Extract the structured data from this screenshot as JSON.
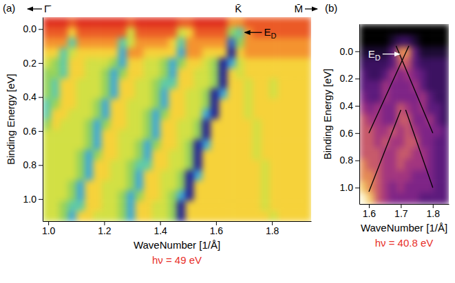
{
  "chart_data": [
    {
      "type": "heatmap",
      "panel_label": "(a)",
      "x_label": "WaveNumber [1/Å]",
      "y_label": "Binding Energy [eV]",
      "note": "hν = 49 eV",
      "xlim": [
        0.98,
        1.94
      ],
      "ylim": [
        -0.07,
        1.13
      ],
      "xticks": [
        {
          "value": 1,
          "label": "1.0"
        },
        1.2,
        1.4,
        1.6,
        1.8
      ],
      "yticks": [
        {
          "value": 0,
          "label": "0.0"
        },
        0.2,
        0.4,
        0.6,
        0.8,
        {
          "value": 1,
          "label": "1.0"
        }
      ],
      "x_bins": [
        0.98,
        1.01,
        1.04,
        1.07,
        1.1,
        1.13,
        1.16,
        1.19,
        1.22,
        1.25,
        1.28,
        1.31,
        1.34,
        1.37,
        1.4,
        1.43,
        1.46,
        1.49,
        1.52,
        1.55,
        1.58,
        1.61,
        1.64,
        1.67,
        1.7,
        1.73,
        1.76,
        1.79,
        1.82,
        1.85,
        1.88,
        1.91,
        1.94
      ],
      "y_bins": [
        -0.07,
        -0.01,
        0.05,
        0.11,
        0.17,
        0.23,
        0.29,
        0.35,
        0.41,
        0.47,
        0.53,
        0.59,
        0.65,
        0.71,
        0.77,
        0.83,
        0.89,
        0.95,
        1.01,
        1.07,
        1.13
      ],
      "zlim": [
        0,
        9
      ],
      "z": [
        [
          0,
          0,
          0,
          1,
          0,
          0,
          0,
          0,
          0,
          0,
          1,
          0,
          0,
          0,
          0,
          0,
          1,
          1,
          0,
          0,
          0,
          0,
          2,
          2,
          1,
          1,
          1,
          1,
          1,
          1,
          1,
          1
        ],
        [
          1,
          1,
          1,
          3,
          1,
          1,
          1,
          1,
          1,
          1,
          4,
          1,
          1,
          1,
          1,
          1,
          4,
          3,
          1,
          1,
          1,
          1,
          5,
          6,
          2,
          1,
          1,
          1,
          1,
          1,
          1,
          1
        ],
        [
          2,
          2,
          2,
          6,
          2,
          2,
          2,
          2,
          2,
          6,
          4,
          2,
          2,
          2,
          2,
          3,
          6,
          2,
          2,
          2,
          2,
          2,
          8,
          5,
          2,
          2,
          2,
          2,
          2,
          2,
          2,
          2
        ],
        [
          3,
          3,
          6,
          4,
          3,
          3,
          3,
          3,
          3,
          7,
          2,
          2,
          3,
          3,
          3,
          3,
          7,
          2,
          2,
          3,
          3,
          3,
          9,
          3,
          2,
          2,
          2,
          2,
          2,
          2,
          2,
          2
        ],
        [
          4,
          5,
          6,
          3,
          3,
          4,
          4,
          4,
          5,
          7,
          3,
          3,
          4,
          4,
          5,
          7,
          5,
          3,
          3,
          4,
          5,
          9,
          7,
          4,
          3,
          3,
          3,
          3,
          3,
          3,
          3,
          3
        ],
        [
          5,
          5,
          6,
          3,
          3,
          4,
          4,
          5,
          7,
          5,
          3,
          3,
          4,
          4,
          5,
          7,
          3,
          3,
          4,
          4,
          5,
          9,
          3,
          4,
          3,
          3,
          3,
          3,
          3,
          3,
          3,
          3
        ],
        [
          5,
          6,
          3,
          3,
          4,
          4,
          4,
          5,
          7,
          3,
          3,
          4,
          4,
          5,
          6,
          6,
          3,
          3,
          4,
          4,
          5,
          9,
          3,
          3,
          4,
          3,
          3,
          4,
          3,
          3,
          3,
          3
        ],
        [
          5,
          6,
          3,
          3,
          4,
          4,
          4,
          5,
          7,
          3,
          3,
          4,
          4,
          5,
          7,
          3,
          3,
          4,
          4,
          5,
          9,
          7,
          3,
          3,
          4,
          3,
          3,
          4,
          3,
          3,
          3,
          3
        ],
        [
          6,
          5,
          3,
          3,
          4,
          4,
          5,
          7,
          3,
          3,
          4,
          4,
          4,
          5,
          7,
          3,
          3,
          4,
          4,
          5,
          9,
          3,
          3,
          3,
          4,
          3,
          3,
          3,
          3,
          3,
          3,
          3
        ],
        [
          6,
          3,
          3,
          4,
          4,
          4,
          5,
          7,
          3,
          3,
          4,
          4,
          5,
          7,
          5,
          3,
          3,
          4,
          4,
          7,
          9,
          3,
          3,
          3,
          4,
          3,
          3,
          3,
          3,
          3,
          3,
          3
        ],
        [
          5,
          3,
          4,
          4,
          4,
          5,
          7,
          5,
          3,
          3,
          4,
          4,
          5,
          7,
          3,
          3,
          4,
          4,
          5,
          9,
          3,
          3,
          3,
          3,
          3,
          4,
          3,
          3,
          3,
          3,
          3,
          3
        ],
        [
          4,
          4,
          4,
          4,
          4,
          5,
          7,
          3,
          3,
          4,
          4,
          4,
          5,
          7,
          3,
          3,
          4,
          4,
          5,
          9,
          3,
          3,
          3,
          3,
          3,
          4,
          3,
          3,
          3,
          3,
          3,
          3
        ],
        [
          4,
          4,
          4,
          4,
          4,
          5,
          7,
          3,
          3,
          4,
          4,
          5,
          7,
          5,
          3,
          3,
          4,
          5,
          9,
          7,
          3,
          3,
          3,
          3,
          3,
          4,
          3,
          3,
          3,
          3,
          3,
          3
        ],
        [
          4,
          4,
          4,
          4,
          5,
          7,
          5,
          3,
          3,
          4,
          4,
          5,
          7,
          3,
          3,
          4,
          4,
          5,
          9,
          3,
          3,
          3,
          3,
          3,
          3,
          4,
          3,
          3,
          3,
          3,
          3,
          3
        ],
        [
          4,
          4,
          4,
          4,
          5,
          7,
          3,
          3,
          4,
          4,
          5,
          6,
          6,
          3,
          3,
          4,
          4,
          5,
          9,
          3,
          3,
          3,
          3,
          3,
          3,
          3,
          4,
          3,
          3,
          3,
          3,
          3
        ],
        [
          4,
          4,
          4,
          4,
          5,
          7,
          3,
          3,
          4,
          4,
          5,
          7,
          3,
          3,
          4,
          4,
          5,
          9,
          7,
          3,
          3,
          3,
          3,
          3,
          3,
          3,
          4,
          3,
          3,
          3,
          3,
          3
        ],
        [
          4,
          4,
          4,
          5,
          7,
          3,
          3,
          4,
          4,
          4,
          5,
          7,
          3,
          3,
          4,
          4,
          5,
          9,
          3,
          3,
          3,
          3,
          3,
          3,
          3,
          3,
          4,
          3,
          3,
          3,
          3,
          3
        ],
        [
          4,
          4,
          4,
          5,
          7,
          3,
          3,
          4,
          4,
          5,
          7,
          5,
          3,
          3,
          4,
          5,
          7,
          9,
          3,
          3,
          3,
          3,
          3,
          3,
          3,
          3,
          4,
          3,
          3,
          3,
          3,
          3
        ],
        [
          4,
          4,
          5,
          6,
          6,
          3,
          3,
          4,
          4,
          5,
          7,
          3,
          3,
          4,
          4,
          5,
          9,
          3,
          3,
          3,
          3,
          3,
          3,
          3,
          3,
          3,
          4,
          3,
          3,
          3,
          3,
          3
        ],
        [
          4,
          4,
          5,
          7,
          3,
          3,
          4,
          4,
          4,
          5,
          7,
          3,
          3,
          4,
          4,
          5,
          9,
          3,
          3,
          3,
          3,
          3,
          3,
          3,
          3,
          3,
          3,
          4,
          3,
          3,
          3,
          3
        ]
      ],
      "symmetry_points": [
        {
          "label": "Γ̄"
        },
        {
          "label": "K̄",
          "x": 1.68
        },
        {
          "label": "M̄"
        }
      ],
      "annotations": [
        {
          "text": "E",
          "subscript": "D",
          "x": 1.695,
          "y": 0.02
        }
      ]
    },
    {
      "type": "heatmap",
      "panel_label": "(b)",
      "x_label": "WaveNumber [1/Å]",
      "y_label": "Binding Energy [eV]",
      "note": "hν = 40.8 eV",
      "xlim": [
        1.57,
        1.85
      ],
      "ylim": [
        -0.2,
        1.12
      ],
      "xticks": [
        1.6,
        1.7,
        1.8
      ],
      "yticks": [
        {
          "value": 0,
          "label": "0.0"
        },
        0.2,
        0.4,
        0.6,
        0.8,
        {
          "value": 1,
          "label": "1.0"
        }
      ],
      "x_bins": [
        1.57,
        1.593,
        1.617,
        1.64,
        1.663,
        1.687,
        1.71,
        1.733,
        1.757,
        1.78,
        1.803,
        1.827,
        1.85
      ],
      "y_bins": [
        -0.2,
        -0.118,
        -0.035,
        0.048,
        0.13,
        0.213,
        0.295,
        0.378,
        0.46,
        0.543,
        0.625,
        0.708,
        0.79,
        0.873,
        0.955,
        1.038,
        1.12
      ],
      "zlim": [
        0,
        9
      ],
      "z": [
        [
          0,
          0,
          0,
          0,
          0,
          0,
          0,
          0,
          0,
          0,
          0,
          0
        ],
        [
          0,
          0,
          0,
          0,
          1,
          2,
          2,
          1,
          0,
          0,
          0,
          0
        ],
        [
          1,
          1,
          1,
          1,
          3,
          7,
          7,
          3,
          1,
          1,
          1,
          1
        ],
        [
          2,
          2,
          2,
          2,
          3,
          6,
          6,
          3,
          2,
          2,
          2,
          2
        ],
        [
          3,
          2,
          2,
          3,
          5,
          4,
          5,
          4,
          3,
          2,
          2,
          2
        ],
        [
          3,
          3,
          3,
          5,
          4,
          4,
          4,
          5,
          3,
          2,
          2,
          2
        ],
        [
          4,
          3,
          3,
          5,
          4,
          4,
          4,
          4,
          5,
          3,
          2,
          2
        ],
        [
          5,
          4,
          5,
          4,
          4,
          6,
          5,
          4,
          5,
          3,
          3,
          2
        ],
        [
          6,
          5,
          5,
          4,
          4,
          6,
          6,
          4,
          4,
          5,
          3,
          2
        ],
        [
          6,
          6,
          5,
          5,
          6,
          5,
          6,
          5,
          4,
          4,
          4,
          3
        ],
        [
          6,
          6,
          5,
          6,
          5,
          5,
          6,
          6,
          4,
          4,
          3,
          3
        ],
        [
          6,
          6,
          6,
          5,
          5,
          6,
          6,
          5,
          5,
          4,
          3,
          3
        ],
        [
          7,
          6,
          6,
          5,
          5,
          6,
          5,
          5,
          5,
          4,
          3,
          3
        ],
        [
          7,
          7,
          6,
          5,
          5,
          5,
          5,
          4,
          4,
          4,
          3,
          3
        ],
        [
          8,
          7,
          6,
          5,
          4,
          5,
          4,
          4,
          4,
          4,
          3,
          3
        ],
        [
          9,
          8,
          6,
          5,
          4,
          4,
          4,
          4,
          3,
          3,
          3,
          3
        ]
      ],
      "lines": [
        {
          "x": [
            1.6,
            1.725
          ],
          "y": [
            0.6,
            -0.04
          ],
          "color": "#000000"
        },
        {
          "x": [
            1.8,
            1.685
          ],
          "y": [
            0.6,
            -0.04
          ],
          "color": "#000000"
        },
        {
          "x": [
            1.6,
            1.7
          ],
          "y": [
            1.03,
            0.43
          ],
          "color": "#000000"
        },
        {
          "x": [
            1.715,
            1.8
          ],
          "y": [
            0.43,
            1.0
          ],
          "color": "#000000"
        }
      ],
      "annotations": [
        {
          "text": "E",
          "subscript": "D",
          "x": 1.703,
          "y": 0.02
        }
      ]
    }
  ]
}
